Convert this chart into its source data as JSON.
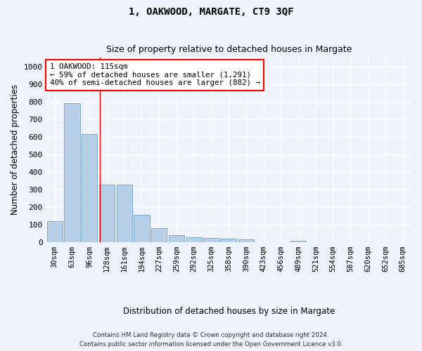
{
  "title": "1, OAKWOOD, MARGATE, CT9 3QF",
  "subtitle": "Size of property relative to detached houses in Margate",
  "xlabel": "Distribution of detached houses by size in Margate",
  "ylabel": "Number of detached properties",
  "categories": [
    "30sqm",
    "63sqm",
    "96sqm",
    "128sqm",
    "161sqm",
    "194sqm",
    "227sqm",
    "259sqm",
    "292sqm",
    "325sqm",
    "358sqm",
    "390sqm",
    "423sqm",
    "456sqm",
    "489sqm",
    "521sqm",
    "554sqm",
    "587sqm",
    "620sqm",
    "652sqm",
    "685sqm"
  ],
  "values": [
    120,
    790,
    615,
    328,
    325,
    155,
    80,
    40,
    28,
    23,
    18,
    13,
    0,
    0,
    8,
    0,
    0,
    0,
    0,
    0,
    0
  ],
  "bar_color": "#b8cfe8",
  "bar_edge_color": "#6aa0c8",
  "ylim": [
    0,
    1050
  ],
  "yticks": [
    0,
    100,
    200,
    300,
    400,
    500,
    600,
    700,
    800,
    900,
    1000
  ],
  "annotation_text": "1 OAKWOOD: 115sqm\n← 59% of detached houses are smaller (1,291)\n40% of semi-detached houses are larger (882) →",
  "annotation_box_color": "white",
  "annotation_box_edge_color": "red",
  "footer_line1": "Contains HM Land Registry data © Crown copyright and database right 2024.",
  "footer_line2": "Contains public sector information licensed under the Open Government Licence v3.0.",
  "background_color": "#eef2fb",
  "grid_color": "white",
  "title_fontsize": 10,
  "subtitle_fontsize": 9
}
